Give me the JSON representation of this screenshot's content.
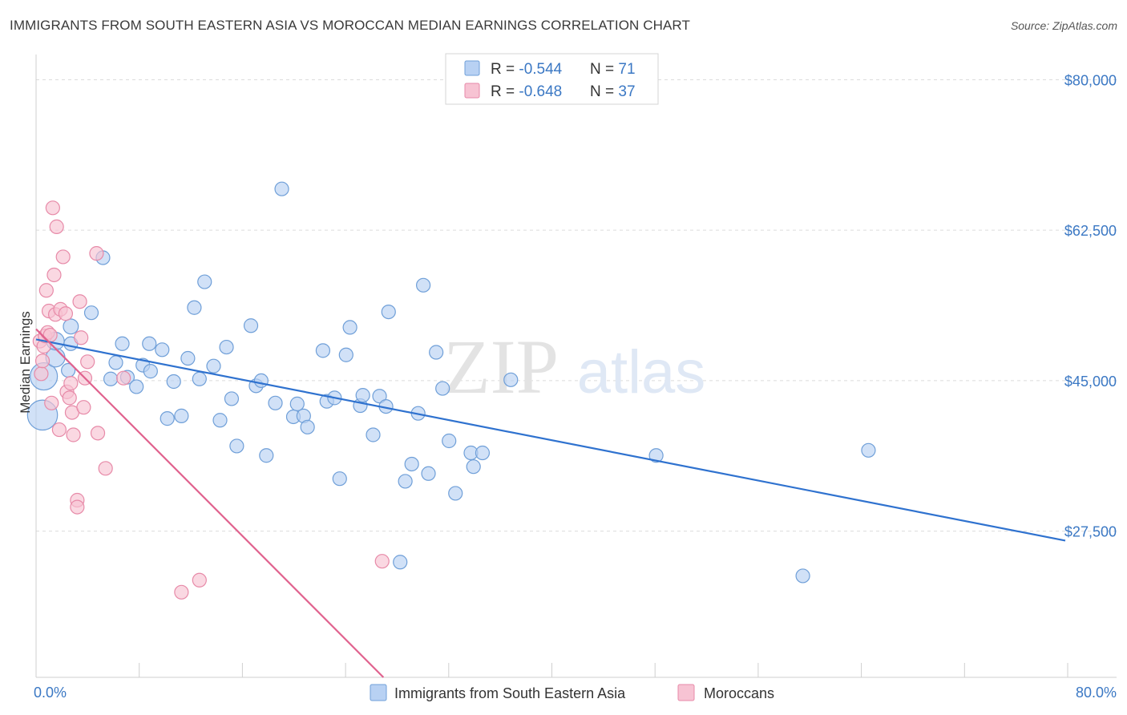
{
  "title": "IMMIGRANTS FROM SOUTH EASTERN ASIA VS MOROCCAN MEDIAN EARNINGS CORRELATION CHART",
  "source": "Source: ZipAtlas.com",
  "watermark": {
    "zip": "ZIP",
    "atlas": "atlas"
  },
  "colors": {
    "blue_fill": "#b8d1f3",
    "blue_stroke": "#6f9fd8",
    "blue_line": "#2f72cf",
    "pink_fill": "#f7c3d3",
    "pink_stroke": "#e78aa8",
    "pink_line": "#e0628e",
    "grid": "#dcdcdc",
    "axis_text": "#3b78c4"
  },
  "legend": {
    "rows": [
      {
        "r_label": "R = ",
        "r_value": "-0.544",
        "n_label": "N = ",
        "n_value": "71",
        "color": "blue"
      },
      {
        "r_label": "R = ",
        "r_value": "-0.648",
        "n_label": "N = ",
        "n_value": "37",
        "color": "pink"
      }
    ]
  },
  "chart_data": {
    "type": "scatter",
    "title": "IMMIGRANTS FROM SOUTH EASTERN ASIA VS MOROCCAN MEDIAN EARNINGS CORRELATION CHART",
    "ylabel": "Median Earnings",
    "xlabel": "",
    "xlim": [
      0,
      80
    ],
    "ylim": [
      10500,
      82000
    ],
    "x_tick_labels": [
      "0.0%",
      "80.0%"
    ],
    "y_ticks": [
      27500,
      45000,
      62500,
      80000
    ],
    "y_tick_labels": [
      "$27,500",
      "$45,000",
      "$62,500",
      "$80,000"
    ],
    "grid": "horizontal dashed",
    "legend_position": "top-center",
    "series": [
      {
        "name": "Immigrants from South Eastern Asia",
        "color": "blue",
        "trend": {
          "x": [
            0,
            80
          ],
          "y": [
            49800,
            26400
          ]
        },
        "points": [
          [
            0.5,
            41000,
            2.2
          ],
          [
            0.6,
            45500,
            2.0
          ],
          [
            1.5,
            47700,
            1.4
          ],
          [
            1.5,
            49600,
            1.3
          ],
          [
            2.5,
            46200,
            1.0
          ],
          [
            2.7,
            49300,
            1.0
          ],
          [
            2.7,
            51300,
            1.1
          ],
          [
            4.3,
            52900,
            1.0
          ],
          [
            5.2,
            59300,
            1.0
          ],
          [
            5.8,
            45200,
            1.0
          ],
          [
            6.2,
            47100,
            1.0
          ],
          [
            6.7,
            49300,
            1.0
          ],
          [
            7.1,
            45400,
            1.0
          ],
          [
            7.8,
            44300,
            1.0
          ],
          [
            8.3,
            46800,
            1.0
          ],
          [
            8.8,
            49300,
            1.0
          ],
          [
            8.9,
            46100,
            1.0
          ],
          [
            9.8,
            48600,
            1.0
          ],
          [
            10.2,
            40600,
            1.0
          ],
          [
            10.7,
            44900,
            1.0
          ],
          [
            11.3,
            40900,
            1.0
          ],
          [
            11.8,
            47600,
            1.0
          ],
          [
            12.3,
            53500,
            1.0
          ],
          [
            12.7,
            45200,
            1.0
          ],
          [
            13.1,
            56500,
            1.0
          ],
          [
            13.8,
            46700,
            1.0
          ],
          [
            14.3,
            40400,
            1.0
          ],
          [
            14.8,
            48900,
            1.0
          ],
          [
            15.2,
            42900,
            1.0
          ],
          [
            15.6,
            37400,
            1.0
          ],
          [
            16.7,
            51400,
            1.0
          ],
          [
            17.1,
            44400,
            1.0
          ],
          [
            17.5,
            45000,
            1.0
          ],
          [
            17.9,
            36300,
            1.0
          ],
          [
            18.6,
            42400,
            1.0
          ],
          [
            19.1,
            67300,
            1.0
          ],
          [
            20.0,
            40800,
            1.0
          ],
          [
            20.3,
            42300,
            1.0
          ],
          [
            20.8,
            40900,
            1.0
          ],
          [
            21.1,
            39600,
            1.0
          ],
          [
            22.3,
            48500,
            1.0
          ],
          [
            22.6,
            42600,
            1.0
          ],
          [
            23.2,
            43000,
            1.0
          ],
          [
            23.6,
            33600,
            1.0
          ],
          [
            24.1,
            48000,
            1.0
          ],
          [
            24.4,
            51200,
            1.0
          ],
          [
            25.2,
            42100,
            1.0
          ],
          [
            25.4,
            43300,
            1.0
          ],
          [
            26.2,
            38700,
            1.0
          ],
          [
            26.7,
            43200,
            1.0
          ],
          [
            27.2,
            42000,
            1.0
          ],
          [
            27.4,
            53000,
            1.0
          ],
          [
            28.3,
            23900,
            1.0
          ],
          [
            28.7,
            33300,
            1.0
          ],
          [
            29.2,
            35300,
            1.0
          ],
          [
            29.7,
            41200,
            1.0
          ],
          [
            30.1,
            56100,
            1.0
          ],
          [
            30.5,
            34200,
            1.0
          ],
          [
            31.1,
            48300,
            1.0
          ],
          [
            31.6,
            44100,
            1.0
          ],
          [
            32.1,
            38000,
            1.0
          ],
          [
            32.6,
            31900,
            1.0
          ],
          [
            33.8,
            36600,
            1.0
          ],
          [
            34.0,
            35000,
            1.0
          ],
          [
            34.7,
            36600,
            1.0
          ],
          [
            36.9,
            45100,
            1.0
          ],
          [
            48.2,
            36300,
            1.0
          ],
          [
            59.6,
            22300,
            1.0
          ],
          [
            64.7,
            36900,
            1.0
          ]
        ]
      },
      {
        "name": "Moroccans",
        "color": "pink",
        "trend": {
          "x": [
            0,
            27
          ],
          "y": [
            51000,
            10500
          ]
        },
        "points": [
          [
            0.3,
            49600,
            1.0
          ],
          [
            0.4,
            45800,
            1.0
          ],
          [
            0.5,
            47300,
            1.0
          ],
          [
            0.6,
            49000,
            1.0
          ],
          [
            0.7,
            50200,
            1.0
          ],
          [
            0.8,
            55500,
            1.0
          ],
          [
            0.9,
            50600,
            1.0
          ],
          [
            1.0,
            53100,
            1.0
          ],
          [
            1.1,
            50300,
            1.0
          ],
          [
            1.2,
            42400,
            1.0
          ],
          [
            1.3,
            65100,
            1.0
          ],
          [
            1.4,
            57300,
            1.0
          ],
          [
            1.5,
            52700,
            1.0
          ],
          [
            1.6,
            62900,
            1.0
          ],
          [
            1.8,
            39300,
            1.0
          ],
          [
            1.9,
            53300,
            1.0
          ],
          [
            2.1,
            59400,
            1.0
          ],
          [
            2.3,
            52800,
            1.0
          ],
          [
            2.4,
            43700,
            1.0
          ],
          [
            2.6,
            43000,
            1.0
          ],
          [
            2.7,
            44700,
            1.0
          ],
          [
            2.8,
            41300,
            1.0
          ],
          [
            2.9,
            38700,
            1.0
          ],
          [
            3.2,
            31100,
            1.0
          ],
          [
            3.2,
            30300,
            1.0
          ],
          [
            3.4,
            54200,
            1.0
          ],
          [
            3.5,
            50000,
            1.0
          ],
          [
            3.7,
            41900,
            1.0
          ],
          [
            3.8,
            45300,
            1.0
          ],
          [
            4.0,
            47200,
            1.0
          ],
          [
            4.7,
            59800,
            1.0
          ],
          [
            4.8,
            38900,
            1.0
          ],
          [
            5.4,
            34800,
            1.0
          ],
          [
            6.8,
            45300,
            1.0
          ],
          [
            11.3,
            20400,
            1.0
          ],
          [
            12.7,
            21800,
            1.0
          ],
          [
            26.9,
            24000,
            1.0
          ]
        ]
      }
    ]
  },
  "bottom_legend": {
    "items": [
      {
        "label": "Immigrants from South Eastern Asia",
        "color": "blue"
      },
      {
        "label": "Moroccans",
        "color": "pink"
      }
    ]
  }
}
